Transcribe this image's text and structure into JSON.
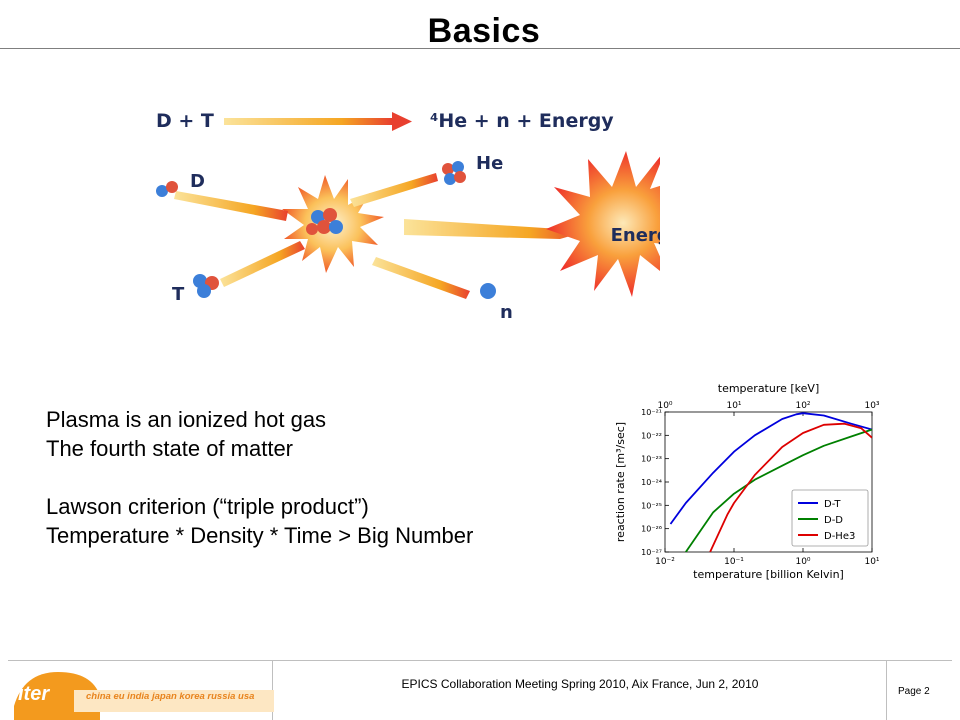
{
  "slide": {
    "title": "Basics"
  },
  "diagram": {
    "equation_left": "D + T",
    "equation_right": "⁴He + n + Energy",
    "label_d": "D",
    "label_t": "T",
    "label_he": "He",
    "label_n": "n",
    "label_energy": "Energy",
    "colors": {
      "arrow": "#f5a623",
      "burst": "#f0542a",
      "burst_inner": "#f79a3a",
      "text_navy": "#1f2d5c",
      "proton": "#e0533c",
      "neutron": "#3c7fd9"
    }
  },
  "text": {
    "line1": "Plasma is an ionized hot gas",
    "line2": "The fourth state of matter",
    "line3": "Lawson criterion (“triple product”)",
    "line4": "Temperature * Density * Time > Big Number"
  },
  "chart_data": {
    "type": "line",
    "xlabel": "temperature  [billion Kelvin]",
    "x2label": "temperature  [keV]",
    "ylabel": "reaction rate  [m³/sec]",
    "x_scale": "log",
    "y_scale": "log",
    "xlim": [
      0.01,
      10
    ],
    "x2lim": [
      1,
      1000
    ],
    "ylim": [
      1e-27,
      1e-21
    ],
    "xticks": [
      "10⁻²",
      "10⁻¹",
      "10⁰",
      "10¹"
    ],
    "x2ticks": [
      "10⁰",
      "10¹",
      "10²",
      "10³"
    ],
    "yticks": [
      "10⁻²¹",
      "10⁻²²",
      "10⁻²³",
      "10⁻²⁴",
      "10⁻²⁵",
      "10⁻²⁶",
      "10⁻²⁷"
    ],
    "legend_position": "bottom-right",
    "series": [
      {
        "name": "D-T",
        "color": "#0000dd",
        "x": [
          0.012,
          0.02,
          0.05,
          0.1,
          0.2,
          0.5,
          0.8,
          1.0,
          2.0,
          5.0,
          10.0
        ],
        "y": [
          -25.8,
          -24.9,
          -23.6,
          -22.7,
          -22.0,
          -21.3,
          -21.1,
          -21.05,
          -21.15,
          -21.5,
          -21.75
        ]
      },
      {
        "name": "D-D",
        "color": "#008000",
        "x": [
          0.02,
          0.05,
          0.1,
          0.2,
          0.5,
          1.0,
          2.0,
          5.0,
          10.0
        ],
        "y": [
          -27.0,
          -25.3,
          -24.5,
          -23.9,
          -23.3,
          -22.85,
          -22.45,
          -22.05,
          -21.75
        ]
      },
      {
        "name": "D-He3",
        "color": "#dd0000",
        "x": [
          0.045,
          0.08,
          0.1,
          0.2,
          0.5,
          1.0,
          2.0,
          4.0,
          7.0,
          10.0
        ],
        "y": [
          -27.0,
          -25.4,
          -24.9,
          -23.7,
          -22.5,
          -21.9,
          -21.55,
          -21.5,
          -21.7,
          -22.1
        ]
      }
    ]
  },
  "footer": {
    "logo_word": "iter",
    "logo_tagline": "china eu india japan korea russia usa",
    "meeting": "EPICS Collaboration Meeting Spring 2010,  Aix France,  Jun 2, 2010",
    "page": "Page 2",
    "logo_color": "#f39a1e"
  }
}
